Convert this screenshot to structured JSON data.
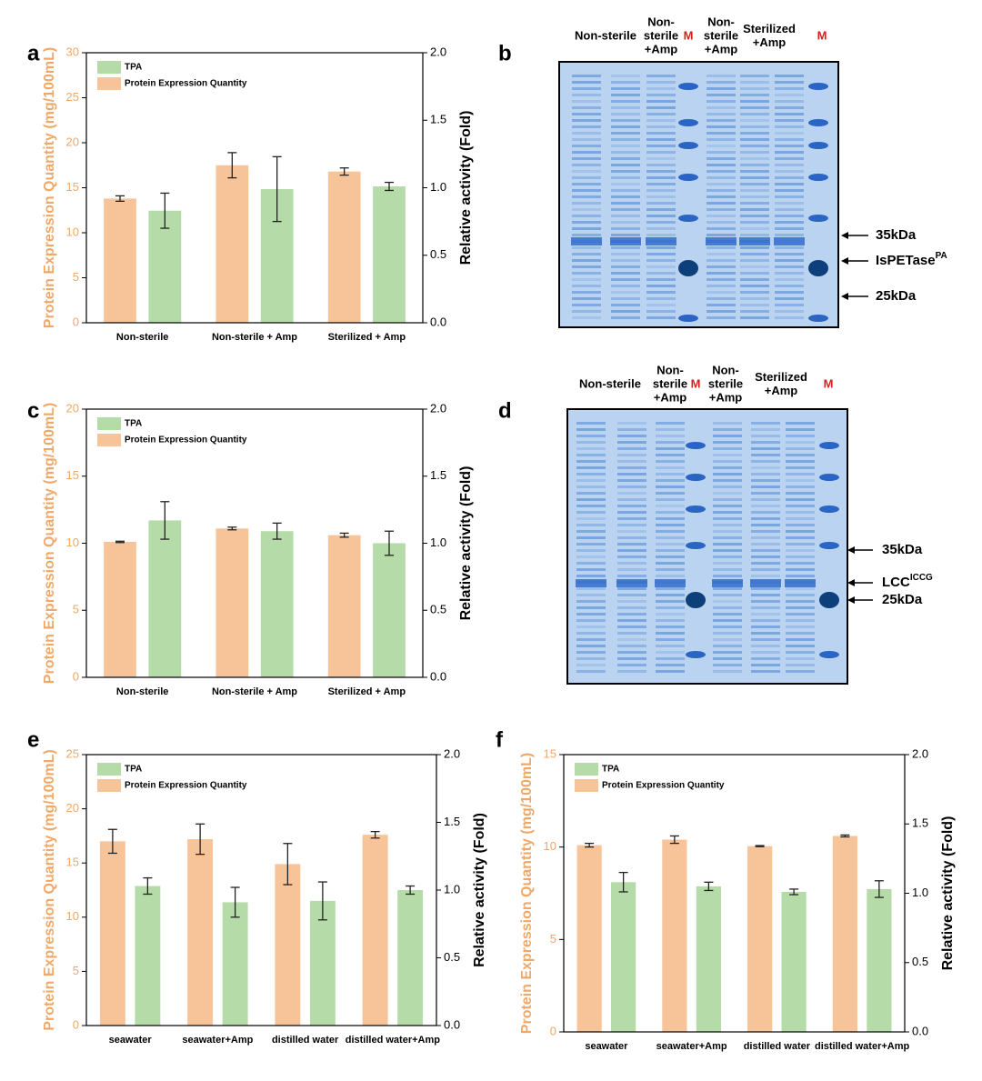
{
  "chart_data": [
    {
      "panel": "a",
      "type": "bar",
      "categories": [
        "Non-sterile",
        "Non-sterile + Amp",
        "Sterilized + Amp"
      ],
      "series": [
        {
          "name": "TPA",
          "color": "#b5dba8",
          "axis": "y2",
          "values": [
            0.83,
            0.99,
            1.01
          ],
          "errors": [
            0.13,
            0.24,
            0.03
          ]
        },
        {
          "name": "Protein Expression Quantity",
          "color": "#f7c49a",
          "values": [
            13.8,
            17.5,
            16.8
          ],
          "errors": [
            0.3,
            1.4,
            0.4
          ]
        }
      ],
      "ylabel": "Protein Expression Quantity (mg/100mL)",
      "y2label": "Relative activity (Fold)",
      "ylim": [
        0,
        30
      ],
      "yticks": [
        0,
        5,
        10,
        15,
        20,
        25,
        30
      ],
      "y2lim": [
        0,
        2
      ],
      "y2ticks": [
        {
          "value": 0,
          "label": "0.0"
        },
        {
          "value": 0.5,
          "label": "0.5"
        },
        {
          "value": 1,
          "label": "1.0"
        },
        {
          "value": 1.5,
          "label": "1.5"
        },
        {
          "value": 2,
          "label": "2.0"
        }
      ],
      "legend": "upper left"
    },
    {
      "panel": "c",
      "type": "bar",
      "categories": [
        "Non-sterile",
        "Non-sterile + Amp",
        "Sterilized + Amp"
      ],
      "series": [
        {
          "name": "TPA",
          "color": "#b5dba8",
          "axis": "y2",
          "values": [
            1.17,
            1.09,
            1.0
          ],
          "errors": [
            0.14,
            0.06,
            0.09
          ]
        },
        {
          "name": "Protein Expression Quantity",
          "color": "#f7c49a",
          "values": [
            10.1,
            11.1,
            10.6
          ],
          "errors": [
            0.05,
            0.1,
            0.15
          ]
        }
      ],
      "ylabel": "Protein Expression Quantity (mg/100mL)",
      "y2label": "Relative activity (Fold)",
      "ylim": [
        0,
        20
      ],
      "yticks": [
        0,
        5,
        10,
        15,
        20
      ],
      "y2lim": [
        0,
        2
      ],
      "y2ticks": [
        {
          "value": 0,
          "label": "0.0"
        },
        {
          "value": 0.5,
          "label": "0.5"
        },
        {
          "value": 1,
          "label": "1.0"
        },
        {
          "value": 1.5,
          "label": "1.5"
        },
        {
          "value": 2,
          "label": "2.0"
        }
      ],
      "legend": "upper left"
    },
    {
      "panel": "e",
      "type": "bar",
      "categories": [
        "seawater",
        "seawater+Amp",
        "distilled water",
        "distilled water+Amp"
      ],
      "series": [
        {
          "name": "TPA",
          "color": "#b5dba8",
          "axis": "y2",
          "values": [
            1.03,
            0.91,
            0.92,
            1.0
          ],
          "errors": [
            0.06,
            0.11,
            0.14,
            0.03
          ]
        },
        {
          "name": "Protein Expression Quantity",
          "color": "#f7c49a",
          "values": [
            17.0,
            17.2,
            14.9,
            17.6
          ],
          "errors": [
            1.1,
            1.4,
            1.9,
            0.3
          ]
        }
      ],
      "ylabel": "Protein Expression Quantity (mg/100mL)",
      "y2label": "Relative activity (Fold)",
      "ylim": [
        0,
        25
      ],
      "yticks": [
        0,
        5,
        10,
        15,
        20,
        25
      ],
      "y2lim": [
        0,
        2
      ],
      "y2ticks": [
        {
          "value": 0,
          "label": "0.0"
        },
        {
          "value": 0.5,
          "label": "0.5"
        },
        {
          "value": 1,
          "label": "1.0"
        },
        {
          "value": 1.5,
          "label": "1.5"
        },
        {
          "value": 2,
          "label": "2.0"
        }
      ],
      "legend": "upper left"
    },
    {
      "panel": "f",
      "type": "bar",
      "categories": [
        "seawater",
        "seawater+Amp",
        "distilled water",
        "distilled water+Amp"
      ],
      "series": [
        {
          "name": "TPA",
          "color": "#b5dba8",
          "axis": "y2",
          "values": [
            1.08,
            1.05,
            1.01,
            1.03
          ],
          "errors": [
            0.07,
            0.03,
            0.02,
            0.06
          ]
        },
        {
          "name": "Protein Expression Quantity",
          "color": "#f7c49a",
          "values": [
            10.1,
            10.4,
            10.05,
            10.6
          ],
          "errors": [
            0.1,
            0.2,
            0.03,
            0.05
          ]
        }
      ],
      "ylabel": "Protein Expression Quantity (mg/100mL)",
      "y2label": "Relative activity (Fold)",
      "ylim": [
        0,
        15
      ],
      "yticks": [
        0,
        5,
        10,
        15
      ],
      "y2lim": [
        0,
        2
      ],
      "y2ticks": [
        {
          "value": 0,
          "label": "0.0"
        },
        {
          "value": 0.5,
          "label": "0.5"
        },
        {
          "value": 1,
          "label": "1.0"
        },
        {
          "value": 1.5,
          "label": "1.5"
        },
        {
          "value": 2,
          "label": "2.0"
        }
      ],
      "legend": "upper left"
    }
  ],
  "gels": [
    {
      "panel": "b",
      "lane_labels": [
        [
          "Non-sterile"
        ],
        [
          "Non-",
          "sterile",
          "+Amp"
        ],
        [
          "M"
        ],
        [
          "Non-",
          "sterile",
          "+Amp"
        ],
        [
          "Sterilized",
          "+Amp"
        ],
        [
          "M"
        ]
      ],
      "annotations": [
        {
          "text": "35kDa"
        },
        {
          "text": "IsPETase",
          "sup": "PA"
        },
        {
          "text": "25kDa"
        }
      ]
    },
    {
      "panel": "d",
      "lane_labels": [
        [
          "Non-sterile"
        ],
        [
          "Non-",
          "sterile",
          "+Amp"
        ],
        [
          "M"
        ],
        [
          "Non-",
          "sterile",
          "+Amp"
        ],
        [
          "Sterilized",
          "+Amp"
        ],
        [
          "M"
        ]
      ],
      "annotations": [
        {
          "text": "35kDa"
        },
        {
          "text": "LCC",
          "sup": "ICCG"
        },
        {
          "text": "25kDa"
        }
      ]
    }
  ]
}
